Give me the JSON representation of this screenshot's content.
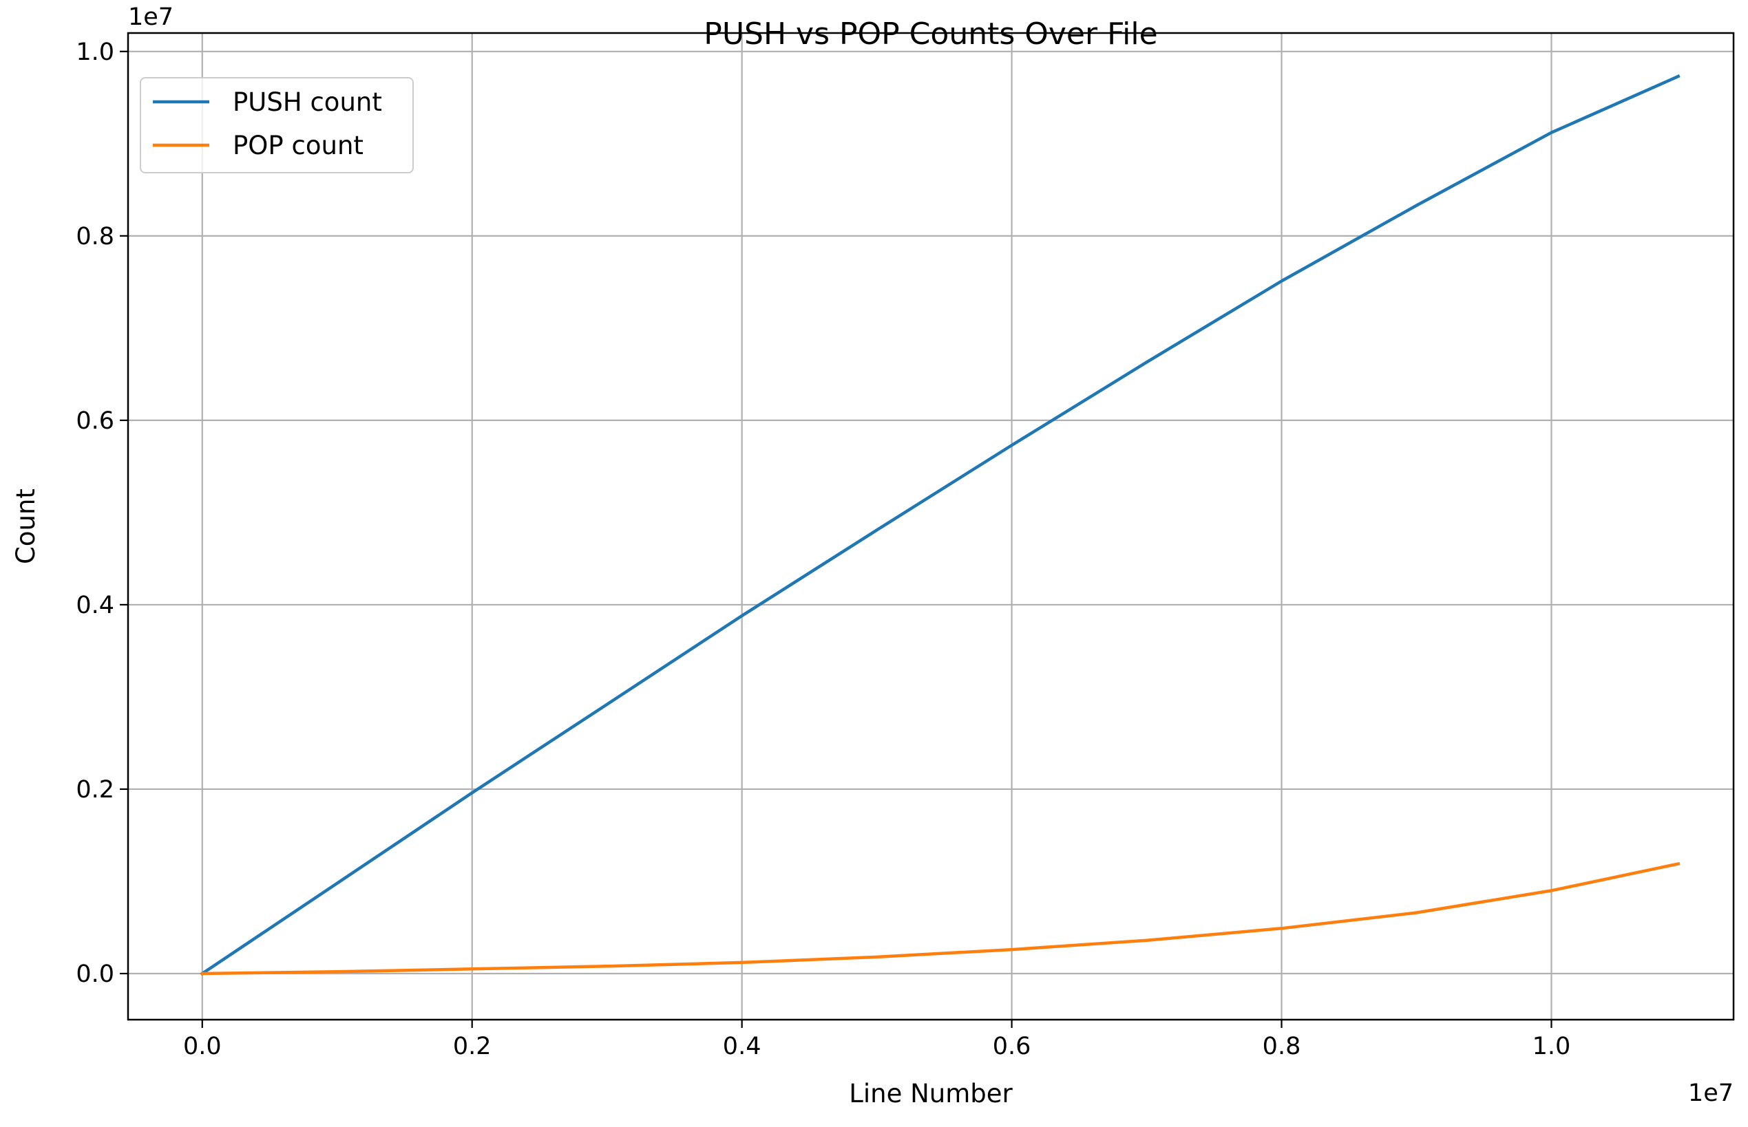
{
  "chart_data": {
    "type": "line",
    "title": "PUSH vs POP Counts Over File",
    "xlabel": "Line Number",
    "ylabel": "Count",
    "x_offset_label": "1e7",
    "y_offset_label": "1e7",
    "xlim": [
      -0.055,
      1.135
    ],
    "ylim": [
      -0.05,
      1.02
    ],
    "x_ticks": [
      0.0,
      0.2,
      0.4,
      0.6,
      0.8,
      1.0
    ],
    "x_tick_labels": [
      "0.0",
      "0.2",
      "0.4",
      "0.6",
      "0.8",
      "1.0"
    ],
    "y_ticks": [
      0.0,
      0.2,
      0.4,
      0.6,
      0.8,
      1.0
    ],
    "y_tick_labels": [
      "0.0",
      "0.2",
      "0.4",
      "0.6",
      "0.8",
      "1.0"
    ],
    "grid": true,
    "legend_position": "top-left",
    "x": [
      0.0,
      0.1,
      0.2,
      0.3,
      0.4,
      0.5,
      0.6,
      0.7,
      0.8,
      0.9,
      1.0,
      1.094
    ],
    "series": [
      {
        "name": "PUSH count",
        "color": "#1f77b4",
        "values": [
          0.0,
          0.098,
          0.196,
          0.292,
          0.388,
          0.481,
          0.573,
          0.663,
          0.751,
          0.833,
          0.912,
          0.973
        ]
      },
      {
        "name": "POP count",
        "color": "#ff7f0e",
        "values": [
          0.0,
          0.002,
          0.005,
          0.008,
          0.012,
          0.018,
          0.026,
          0.036,
          0.049,
          0.066,
          0.09,
          0.119
        ]
      }
    ]
  }
}
